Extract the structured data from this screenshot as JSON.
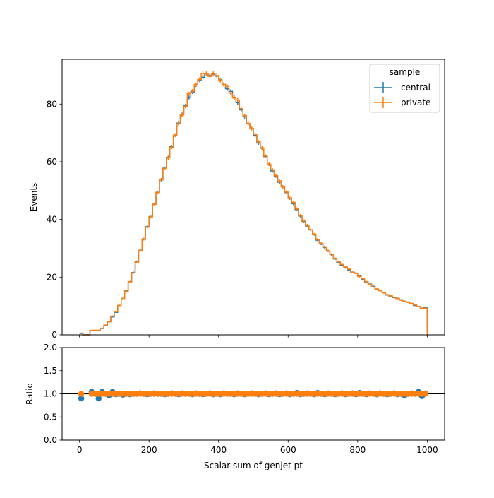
{
  "chart_data": {
    "type": "histogram",
    "xlabel": "Scalar sum of genjet pt",
    "x_ticks": [
      0,
      200,
      400,
      600,
      800,
      1000
    ],
    "xlim": [
      -50,
      1050
    ],
    "top_panel": {
      "ylabel": "Events",
      "y_ticks": [
        0,
        20,
        40,
        60,
        80
      ],
      "ylim": [
        0,
        95.5
      ],
      "bin_edges": [
        0,
        10,
        20,
        30,
        40,
        50,
        60,
        70,
        80,
        90,
        100,
        110,
        120,
        130,
        140,
        150,
        160,
        170,
        180,
        190,
        200,
        210,
        220,
        230,
        240,
        250,
        260,
        270,
        280,
        290,
        300,
        310,
        320,
        330,
        340,
        350,
        360,
        370,
        380,
        390,
        400,
        410,
        420,
        430,
        440,
        450,
        460,
        470,
        480,
        490,
        500,
        510,
        520,
        530,
        540,
        550,
        560,
        570,
        580,
        590,
        600,
        610,
        620,
        630,
        640,
        650,
        660,
        670,
        680,
        690,
        700,
        710,
        720,
        730,
        740,
        750,
        760,
        770,
        780,
        790,
        800,
        810,
        820,
        830,
        840,
        850,
        860,
        870,
        880,
        890,
        900,
        910,
        920,
        930,
        940,
        950,
        960,
        970,
        980,
        990,
        1000
      ],
      "legend": {
        "title": "sample",
        "placement": "upper right"
      },
      "series": [
        {
          "name": "central",
          "color": "#1f77b4",
          "values": [
            0.5,
            0,
            0,
            1.5,
            1.5,
            1.5,
            2.2,
            3.2,
            4.5,
            6.2,
            7.8,
            10.2,
            12.6,
            15.2,
            18.4,
            21.6,
            25.4,
            29.3,
            33.2,
            37.5,
            41,
            45.3,
            49.4,
            53.7,
            57.8,
            61.5,
            65.2,
            69.2,
            73.4,
            76.4,
            79.4,
            82.3,
            84.2,
            86.6,
            88.3,
            89.3,
            90.5,
            89.9,
            90.3,
            89.7,
            88.4,
            86.8,
            85.3,
            84.4,
            82.3,
            80.5,
            78,
            75.6,
            73.2,
            71.5,
            69.1,
            66.5,
            64.7,
            61.8,
            59.1,
            56.8,
            55,
            52.9,
            51.3,
            49.3,
            47.3,
            45.5,
            43.4,
            41.2,
            39.3,
            37.7,
            36.4,
            34.8,
            32.8,
            31.5,
            30.3,
            29.1,
            27.8,
            26.3,
            25.1,
            24.1,
            23.3,
            22.5,
            21.7,
            21.4,
            20.4,
            19.3,
            18.3,
            17.6,
            16.8,
            15.7,
            15.3,
            14.6,
            13.8,
            13.3,
            12.9,
            12.6,
            12.1,
            11.6,
            11.3,
            10.8,
            10.2,
            9.8,
            9.2,
            9.4
          ],
          "errors": [
            0.1,
            0.05,
            0.05,
            0.1,
            0.1,
            0.1,
            0.12,
            0.14,
            0.16,
            0.19,
            0.21,
            0.24,
            0.27,
            0.3,
            0.32,
            0.35,
            0.38,
            0.41,
            0.44,
            0.46,
            0.48,
            0.51,
            0.53,
            0.55,
            0.57,
            0.59,
            0.61,
            0.63,
            0.64,
            0.66,
            0.67,
            0.68,
            0.69,
            0.7,
            0.71,
            0.72,
            0.72,
            0.72,
            0.72,
            0.72,
            0.71,
            0.71,
            0.7,
            0.69,
            0.68,
            0.67,
            0.66,
            0.65,
            0.64,
            0.63,
            0.62,
            0.61,
            0.6,
            0.59,
            0.58,
            0.57,
            0.56,
            0.55,
            0.54,
            0.53,
            0.52,
            0.51,
            0.5,
            0.48,
            0.47,
            0.46,
            0.45,
            0.44,
            0.43,
            0.42,
            0.41,
            0.4,
            0.39,
            0.38,
            0.37,
            0.37,
            0.36,
            0.35,
            0.35,
            0.34,
            0.34,
            0.33,
            0.32,
            0.31,
            0.31,
            0.3,
            0.29,
            0.29,
            0.28,
            0.27,
            0.27,
            0.27,
            0.26,
            0.26,
            0.25,
            0.25,
            0.24,
            0.24,
            0.23,
            0.23
          ]
        },
        {
          "name": "private",
          "color": "#ff7f0e",
          "values": [
            0.6,
            0,
            0,
            1.6,
            1.6,
            1.6,
            2.3,
            3.4,
            4.5,
            6.5,
            8.1,
            10.2,
            12.6,
            15.1,
            18.4,
            21.5,
            25.2,
            29.2,
            33.1,
            37.3,
            40.9,
            45.2,
            49.3,
            53.8,
            57.7,
            61.3,
            65,
            69.2,
            73.2,
            76.2,
            79.2,
            83.6,
            84.5,
            86.8,
            88.5,
            90.6,
            90.6,
            89.6,
            90.6,
            89.9,
            88.2,
            86.8,
            86.1,
            83.8,
            82.1,
            81.4,
            78.4,
            76,
            73.3,
            71.6,
            69.5,
            66.9,
            64.8,
            62,
            59.2,
            57.2,
            55.2,
            53.4,
            51.3,
            49.5,
            47.4,
            45.9,
            43.7,
            41.4,
            39.5,
            38,
            36.4,
            34.9,
            33.1,
            31.7,
            30.5,
            29.1,
            27.9,
            26.5,
            25.4,
            24.4,
            23.5,
            22.8,
            21.7,
            21.3,
            20.2,
            19.5,
            18.4,
            17.5,
            16.6,
            15.9,
            15.3,
            14.6,
            13.9,
            13.5,
            13,
            12.6,
            12,
            11.6,
            11.3,
            10.9,
            10.4,
            9.8,
            9.2,
            9.2
          ],
          "errors": [
            0.1,
            0.05,
            0.05,
            0.1,
            0.1,
            0.1,
            0.12,
            0.14,
            0.16,
            0.19,
            0.21,
            0.24,
            0.27,
            0.3,
            0.32,
            0.35,
            0.38,
            0.41,
            0.44,
            0.46,
            0.48,
            0.51,
            0.53,
            0.55,
            0.57,
            0.59,
            0.61,
            0.63,
            0.64,
            0.66,
            0.67,
            0.68,
            0.69,
            0.7,
            0.71,
            0.72,
            0.72,
            0.72,
            0.72,
            0.72,
            0.71,
            0.71,
            0.7,
            0.69,
            0.68,
            0.67,
            0.66,
            0.65,
            0.64,
            0.63,
            0.62,
            0.61,
            0.6,
            0.59,
            0.58,
            0.57,
            0.56,
            0.55,
            0.54,
            0.53,
            0.52,
            0.51,
            0.5,
            0.48,
            0.47,
            0.46,
            0.45,
            0.44,
            0.43,
            0.42,
            0.41,
            0.4,
            0.39,
            0.38,
            0.37,
            0.37,
            0.36,
            0.35,
            0.35,
            0.34,
            0.34,
            0.33,
            0.32,
            0.31,
            0.31,
            0.3,
            0.29,
            0.29,
            0.28,
            0.27,
            0.27,
            0.27,
            0.26,
            0.26,
            0.25,
            0.25,
            0.24,
            0.24,
            0.23,
            0.23
          ]
        }
      ]
    },
    "ratio_panel": {
      "type": "scatter",
      "ylabel": "Ratio",
      "y_ticks": [
        0.0,
        0.5,
        1.0,
        1.5,
        2.0
      ],
      "ylim": [
        0,
        2
      ],
      "reference_line": 1.0,
      "x": [
        5,
        35,
        45,
        55,
        65,
        75,
        85,
        95,
        105,
        115,
        125,
        135,
        145,
        155,
        165,
        175,
        185,
        195,
        205,
        215,
        225,
        235,
        245,
        255,
        265,
        275,
        285,
        295,
        305,
        315,
        325,
        335,
        345,
        355,
        365,
        375,
        385,
        395,
        405,
        415,
        425,
        435,
        445,
        455,
        465,
        475,
        485,
        495,
        505,
        515,
        525,
        535,
        545,
        555,
        565,
        575,
        585,
        595,
        605,
        615,
        625,
        635,
        645,
        655,
        665,
        675,
        685,
        695,
        705,
        715,
        725,
        735,
        745,
        755,
        765,
        775,
        785,
        795,
        805,
        815,
        825,
        835,
        845,
        855,
        865,
        875,
        885,
        895,
        905,
        915,
        925,
        935,
        945,
        955,
        965,
        975,
        985,
        995
      ],
      "series": [
        {
          "name": "central",
          "color": "#1f77b4",
          "values": [
            0.9,
            1.04,
            1.0,
            0.9,
            1.04,
            1.0,
            0.97,
            1.04,
            0.99,
            1.0,
            0.98,
            1.0,
            0.99,
            1.0,
            1.0,
            1.01,
            1.0,
            0.99,
            1.0,
            1.01,
            1.0,
            1.0,
            0.99,
            1.0,
            1.01,
            1.0,
            0.99,
            1.01,
            1.0,
            1.0,
            0.99,
            1.01,
            1.0,
            0.99,
            1.0,
            1.01,
            0.99,
            1.0,
            0.99,
            1.01,
            1.0,
            1.0,
            0.99,
            1.01,
            1.0,
            0.99,
            1.0,
            1.01,
            1.0,
            0.99,
            1.0,
            1.01,
            0.99,
            1.0,
            1.01,
            0.99,
            1.0,
            1.01,
            0.99,
            1.0,
            1.02,
            0.99,
            1.0,
            1.01,
            1.0,
            0.99,
            1.02,
            1.0,
            0.99,
            1.01,
            1.0,
            0.99,
            1.0,
            1.01,
            0.99,
            1.0,
            1.01,
            0.99,
            1.02,
            1.0,
            0.99,
            1.01,
            1.0,
            0.99,
            1.01,
            1.0,
            0.99,
            1.0,
            1.01,
            0.99,
            1.0,
            0.97,
            1.0,
            1.01,
            1.0,
            1.04,
            0.95,
            1.01
          ]
        },
        {
          "name": "private",
          "color": "#ff7f0e",
          "values": [
            1.0,
            1.0,
            1.0,
            1.0,
            1.0,
            1.0,
            1.0,
            1.0,
            1.0,
            1.0,
            1.0,
            1.0,
            1.0,
            1.0,
            1.0,
            1.0,
            1.0,
            1.0,
            1.0,
            1.0,
            1.0,
            1.0,
            1.0,
            1.0,
            1.0,
            1.0,
            1.0,
            1.0,
            1.0,
            1.0,
            1.0,
            1.0,
            1.0,
            1.0,
            1.0,
            1.0,
            1.0,
            1.0,
            1.0,
            1.0,
            1.0,
            1.0,
            1.0,
            1.0,
            1.0,
            1.0,
            1.0,
            1.0,
            1.0,
            1.0,
            1.0,
            1.0,
            1.0,
            1.0,
            1.0,
            1.0,
            1.0,
            1.0,
            1.0,
            1.0,
            1.0,
            1.0,
            1.0,
            1.0,
            1.0,
            1.0,
            1.0,
            1.0,
            1.0,
            1.0,
            1.0,
            1.0,
            1.0,
            1.0,
            1.0,
            1.0,
            1.0,
            1.0,
            1.0,
            1.0,
            1.0,
            1.0,
            1.0,
            1.0,
            1.0,
            1.0,
            1.0,
            1.0,
            1.0,
            1.0,
            1.0,
            1.0,
            1.0,
            1.0,
            1.0,
            1.0,
            1.0,
            1.0
          ]
        }
      ]
    }
  }
}
